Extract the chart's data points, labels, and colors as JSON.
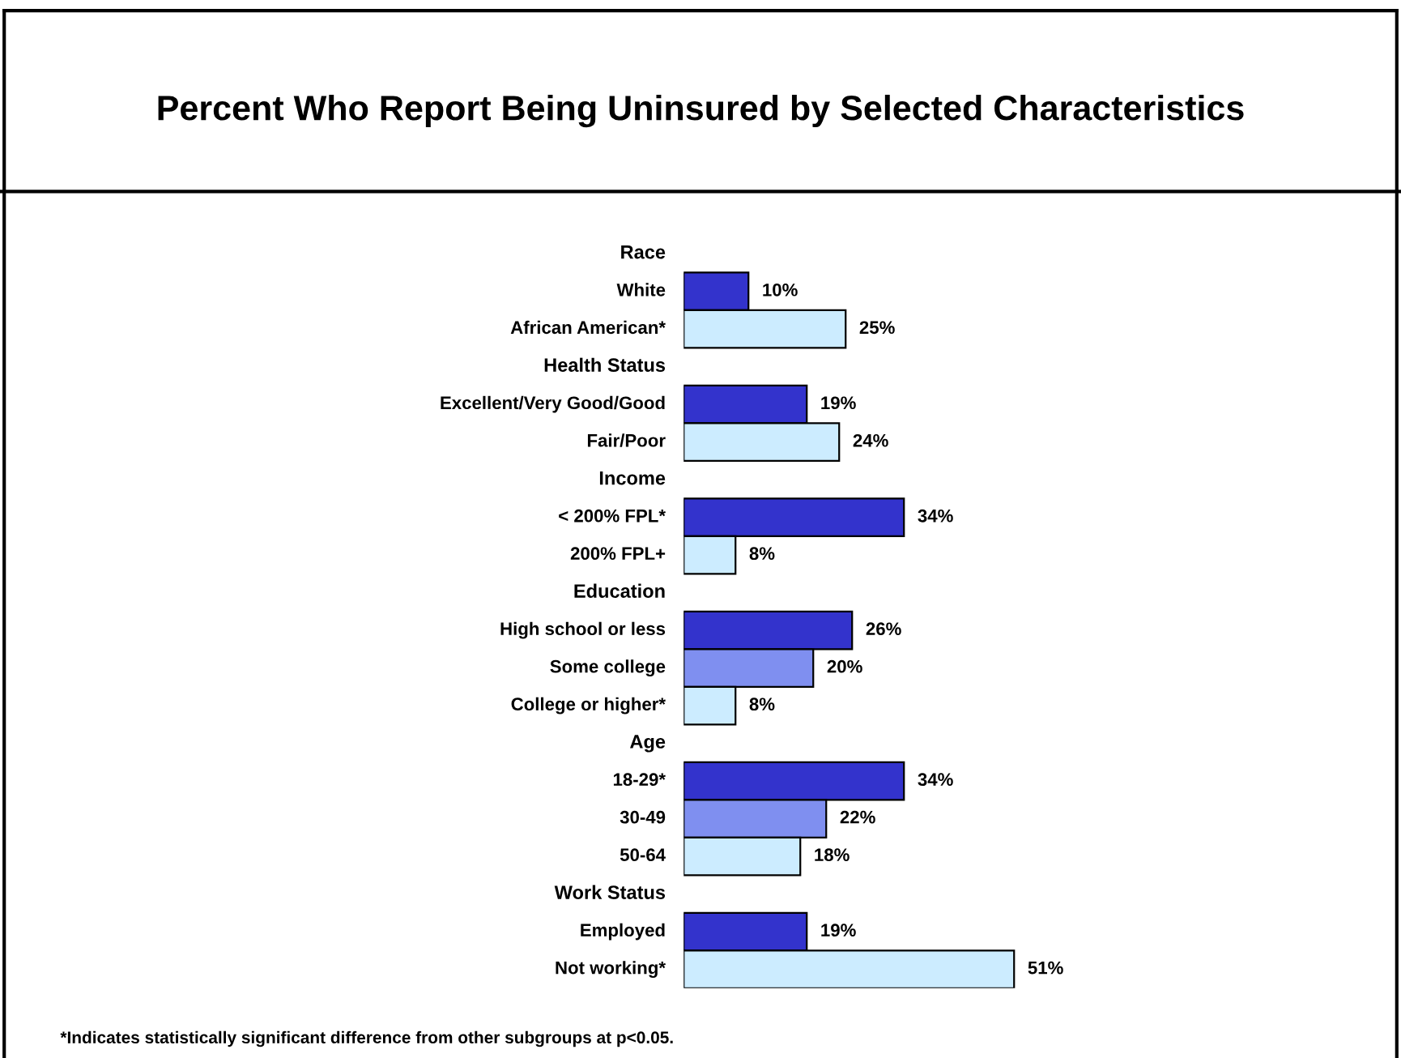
{
  "chart_data": {
    "type": "bar",
    "orientation": "horizontal",
    "title": "Percent Who Report Being Uninsured by Selected Characteristics",
    "categories": [
      "Race",
      "White",
      "African American*",
      "Health Status",
      "Excellent/Very Good/Good",
      "Fair/Poor",
      "Income",
      "< 200% FPL*",
      "200% FPL+",
      "Education",
      "High school or less",
      "Some college",
      "College or higher*",
      "Age",
      "18-29*",
      "30-49",
      "50-64",
      "Work Status",
      "Employed",
      "Not working*"
    ],
    "values": [
      null,
      10,
      25,
      null,
      19,
      24,
      null,
      34,
      8,
      null,
      26,
      20,
      8,
      null,
      34,
      22,
      18,
      null,
      19,
      51
    ],
    "colors": [
      "#3333cc",
      "#3333cc",
      "#ccecff",
      "#3333cc",
      "#3333cc",
      "#ccecff",
      "#3333cc",
      "#3333cc",
      "#ccecff",
      "#3333cc",
      "#3333cc",
      "#7f8ff0",
      "#ccecff",
      "#3333cc",
      "#3333cc",
      "#7f8ff0",
      "#ccecff",
      "#3333cc",
      "#3333cc",
      "#ccecff"
    ],
    "value_labels": [
      null,
      "10%",
      "25%",
      null,
      "19%",
      "24%",
      null,
      "34%",
      "8%",
      null,
      "26%",
      "20%",
      "8%",
      null,
      "34%",
      "22%",
      "18%",
      null,
      "19%",
      "51%"
    ],
    "legend": false,
    "annotations": [
      "*Indicates statistically significant difference from other subgroups at p<0.05."
    ]
  }
}
